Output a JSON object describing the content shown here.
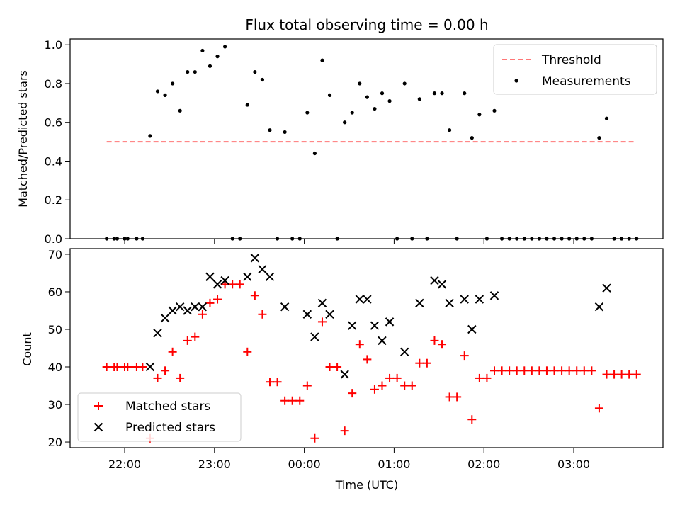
{
  "title": "Flux total observing time = 0.00 h",
  "chart_data": [
    {
      "type": "scatter",
      "panel": "top",
      "ylabel": "Matched/Predicted stars",
      "xlabel": "",
      "ylim": [
        0,
        1.03
      ],
      "yticks": [
        "0.0",
        "0.2",
        "0.4",
        "0.6",
        "0.8",
        "1.0"
      ],
      "ytick_values": [
        0,
        0.2,
        0.4,
        0.6,
        0.8,
        1.0
      ],
      "legend_position": "top-right",
      "threshold": {
        "name": "Threshold",
        "value": 0.5,
        "x_start": "21:48",
        "x_end": "03:40",
        "color": "#ff7777",
        "style": "dashed"
      },
      "series": [
        {
          "name": "Measurements",
          "color": "#000000",
          "marker": "dot",
          "points": [
            [
              "21:48",
              0
            ],
            [
              "21:53",
              0
            ],
            [
              "21:55",
              0
            ],
            [
              "22:00",
              0
            ],
            [
              "22:02",
              0
            ],
            [
              "22:08",
              0
            ],
            [
              "22:12",
              0
            ],
            [
              "22:17",
              0.53
            ],
            [
              "22:22",
              0.76
            ],
            [
              "22:27",
              0.74
            ],
            [
              "22:32",
              0.8
            ],
            [
              "22:37",
              0.66
            ],
            [
              "22:42",
              0.86
            ],
            [
              "22:47",
              0.86
            ],
            [
              "22:52",
              0.97
            ],
            [
              "22:57",
              0.89
            ],
            [
              "23:02",
              0.94
            ],
            [
              "23:07",
              0.99
            ],
            [
              "23:12",
              0
            ],
            [
              "23:17",
              0
            ],
            [
              "23:22",
              0.69
            ],
            [
              "23:27",
              0.86
            ],
            [
              "23:32",
              0.82
            ],
            [
              "23:37",
              0.56
            ],
            [
              "23:42",
              0
            ],
            [
              "23:47",
              0.55
            ],
            [
              "23:52",
              0
            ],
            [
              "23:57",
              0
            ],
            [
              "00:02",
              0.65
            ],
            [
              "00:07",
              0.44
            ],
            [
              "00:12",
              0.92
            ],
            [
              "00:17",
              0.74
            ],
            [
              "00:22",
              0
            ],
            [
              "00:27",
              0.6
            ],
            [
              "00:32",
              0.65
            ],
            [
              "00:37",
              0.8
            ],
            [
              "00:42",
              0.73
            ],
            [
              "00:47",
              0.67
            ],
            [
              "00:52",
              0.75
            ],
            [
              "00:57",
              0.71
            ],
            [
              "01:02",
              0
            ],
            [
              "01:07",
              0.8
            ],
            [
              "01:12",
              0
            ],
            [
              "01:17",
              0.72
            ],
            [
              "01:22",
              0
            ],
            [
              "01:27",
              0.75
            ],
            [
              "01:32",
              0.75
            ],
            [
              "01:37",
              0.56
            ],
            [
              "01:42",
              0
            ],
            [
              "01:47",
              0.75
            ],
            [
              "01:52",
              0.52
            ],
            [
              "01:57",
              0.64
            ],
            [
              "02:02",
              0
            ],
            [
              "02:07",
              0.66
            ],
            [
              "02:12",
              0
            ],
            [
              "02:17",
              0
            ],
            [
              "02:22",
              0
            ],
            [
              "02:27",
              0
            ],
            [
              "02:32",
              0
            ],
            [
              "02:37",
              0
            ],
            [
              "02:42",
              0
            ],
            [
              "02:47",
              0
            ],
            [
              "02:52",
              0
            ],
            [
              "02:57",
              0
            ],
            [
              "03:02",
              0
            ],
            [
              "03:07",
              0
            ],
            [
              "03:12",
              0
            ],
            [
              "03:17",
              0.52
            ],
            [
              "03:22",
              0.62
            ],
            [
              "03:27",
              0
            ],
            [
              "03:32",
              0
            ],
            [
              "03:37",
              0
            ],
            [
              "03:42",
              0
            ]
          ]
        }
      ]
    },
    {
      "type": "scatter",
      "panel": "bottom",
      "xlabel": "Time (UTC)",
      "ylabel": "Count",
      "ylim": [
        18.5,
        71.5
      ],
      "yticks": [
        "20",
        "30",
        "40",
        "50",
        "60",
        "70"
      ],
      "ytick_values": [
        20,
        30,
        40,
        50,
        60,
        70
      ],
      "xticks": [
        "22:00",
        "23:00",
        "00:00",
        "01:00",
        "02:00",
        "03:00"
      ],
      "xtick_values": [
        "22:00",
        "23:00",
        "00:00",
        "01:00",
        "02:00",
        "03:00"
      ],
      "legend_position": "bottom-left",
      "series": [
        {
          "name": "Matched stars",
          "color": "#ff0000",
          "marker": "plus",
          "points": [
            [
              "21:48",
              40
            ],
            [
              "21:53",
              40
            ],
            [
              "21:55",
              40
            ],
            [
              "22:00",
              40
            ],
            [
              "22:02",
              40
            ],
            [
              "22:08",
              40
            ],
            [
              "22:12",
              40
            ],
            [
              "22:17",
              21
            ],
            [
              "22:22",
              37
            ],
            [
              "22:27",
              39
            ],
            [
              "22:32",
              44
            ],
            [
              "22:37",
              37
            ],
            [
              "22:42",
              47
            ],
            [
              "22:47",
              48
            ],
            [
              "22:52",
              54
            ],
            [
              "22:57",
              57
            ],
            [
              "23:02",
              58
            ],
            [
              "23:07",
              62
            ],
            [
              "23:12",
              62
            ],
            [
              "23:17",
              62
            ],
            [
              "23:22",
              44
            ],
            [
              "23:27",
              59
            ],
            [
              "23:32",
              54
            ],
            [
              "23:37",
              36
            ],
            [
              "23:42",
              36
            ],
            [
              "23:47",
              31
            ],
            [
              "23:52",
              31
            ],
            [
              "23:57",
              31
            ],
            [
              "00:02",
              35
            ],
            [
              "00:07",
              21
            ],
            [
              "00:12",
              52
            ],
            [
              "00:17",
              40
            ],
            [
              "00:22",
              40
            ],
            [
              "00:27",
              23
            ],
            [
              "00:32",
              33
            ],
            [
              "00:37",
              46
            ],
            [
              "00:42",
              42
            ],
            [
              "00:47",
              34
            ],
            [
              "00:52",
              35
            ],
            [
              "00:57",
              37
            ],
            [
              "01:02",
              37
            ],
            [
              "01:07",
              35
            ],
            [
              "01:12",
              35
            ],
            [
              "01:17",
              41
            ],
            [
              "01:22",
              41
            ],
            [
              "01:27",
              47
            ],
            [
              "01:32",
              46
            ],
            [
              "01:37",
              32
            ],
            [
              "01:42",
              32
            ],
            [
              "01:47",
              43
            ],
            [
              "01:52",
              26
            ],
            [
              "01:57",
              37
            ],
            [
              "02:02",
              37
            ],
            [
              "02:07",
              39
            ],
            [
              "02:12",
              39
            ],
            [
              "02:17",
              39
            ],
            [
              "02:22",
              39
            ],
            [
              "02:27",
              39
            ],
            [
              "02:32",
              39
            ],
            [
              "02:37",
              39
            ],
            [
              "02:42",
              39
            ],
            [
              "02:47",
              39
            ],
            [
              "02:52",
              39
            ],
            [
              "02:57",
              39
            ],
            [
              "03:02",
              39
            ],
            [
              "03:07",
              39
            ],
            [
              "03:12",
              39
            ],
            [
              "03:17",
              29
            ],
            [
              "03:22",
              38
            ],
            [
              "03:27",
              38
            ],
            [
              "03:32",
              38
            ],
            [
              "03:37",
              38
            ],
            [
              "03:42",
              38
            ]
          ]
        },
        {
          "name": "Predicted stars",
          "color": "#000000",
          "marker": "x",
          "points": [
            [
              "22:17",
              40
            ],
            [
              "22:22",
              49
            ],
            [
              "22:27",
              53
            ],
            [
              "22:32",
              55
            ],
            [
              "22:37",
              56
            ],
            [
              "22:42",
              55
            ],
            [
              "22:47",
              56
            ],
            [
              "22:52",
              56
            ],
            [
              "22:57",
              64
            ],
            [
              "23:02",
              62
            ],
            [
              "23:07",
              63
            ],
            [
              "23:22",
              64
            ],
            [
              "23:27",
              69
            ],
            [
              "23:32",
              66
            ],
            [
              "23:37",
              64
            ],
            [
              "23:47",
              56
            ],
            [
              "00:02",
              54
            ],
            [
              "00:07",
              48
            ],
            [
              "00:12",
              57
            ],
            [
              "00:17",
              54
            ],
            [
              "00:27",
              38
            ],
            [
              "00:32",
              51
            ],
            [
              "00:37",
              58
            ],
            [
              "00:42",
              58
            ],
            [
              "00:47",
              51
            ],
            [
              "00:52",
              47
            ],
            [
              "00:57",
              52
            ],
            [
              "01:07",
              44
            ],
            [
              "01:17",
              57
            ],
            [
              "01:27",
              63
            ],
            [
              "01:32",
              62
            ],
            [
              "01:37",
              57
            ],
            [
              "01:47",
              58
            ],
            [
              "01:52",
              50
            ],
            [
              "01:57",
              58
            ],
            [
              "02:07",
              59
            ],
            [
              "03:17",
              56
            ],
            [
              "03:22",
              61
            ]
          ]
        }
      ]
    }
  ]
}
